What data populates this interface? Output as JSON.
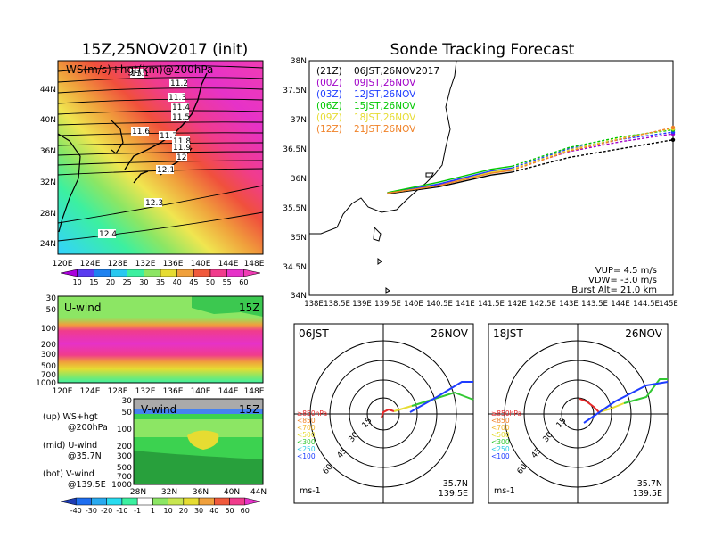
{
  "left_title": "15Z,25NOV2017 (init)",
  "right_title": "Sonde Tracking Forecast",
  "ws_panel": {
    "label": "WS(m/s)+hgt(km)@200hPa",
    "lat_ticks": [
      "44N",
      "40N",
      "36N",
      "32N",
      "28N",
      "24N"
    ],
    "lon_ticks": [
      "120E",
      "124E",
      "128E",
      "132E",
      "136E",
      "140E",
      "144E",
      "148E"
    ],
    "contour_labels": [
      "11.1",
      "11.2",
      "11.3",
      "11.4",
      "11.5",
      "11.6",
      "11.7",
      "11.8",
      "11.9",
      "12",
      "12.1",
      "12.3",
      "12.4"
    ],
    "colorbar": [
      "10",
      "15",
      "20",
      "25",
      "30",
      "35",
      "40",
      "45",
      "50",
      "55",
      "60"
    ]
  },
  "u_panel": {
    "label": "U-wind",
    "time": "15Z",
    "y_ticks": [
      "30",
      "50",
      "100",
      "200",
      "300",
      "500",
      "700",
      "1000"
    ],
    "x_ticks": [
      "120E",
      "124E",
      "128E",
      "132E",
      "136E",
      "140E",
      "144E",
      "148E"
    ]
  },
  "v_panel": {
    "label": "V-wind",
    "time": "15Z",
    "y_ticks": [
      "30",
      "50",
      "100",
      "200",
      "300",
      "500",
      "700",
      "1000"
    ],
    "x_ticks": [
      "28N",
      "32N",
      "36N",
      "40N",
      "44N"
    ],
    "colorbar": [
      "-40",
      "-30",
      "-20",
      "-10",
      "-1",
      "1",
      "10",
      "20",
      "30",
      "40",
      "50",
      "60"
    ]
  },
  "notes": {
    "up": "(up) WS+hgt",
    "up2": "@200hPa",
    "mid": "(mid) U-wind",
    "mid2": "@35.7N",
    "bot": "(bot) V-wind",
    "bot2": "@139.5E"
  },
  "track_map": {
    "legend": [
      {
        "z": "(21Z)",
        "label": "06JST,26NOV2017",
        "color": "#000000"
      },
      {
        "z": "(00Z)",
        "label": "09JST,26NOV",
        "color": "#a000c8"
      },
      {
        "z": "(03Z)",
        "label": "12JST,26NOV",
        "color": "#1e3cff"
      },
      {
        "z": "(06Z)",
        "label": "15JST,26NOV",
        "color": "#00c800"
      },
      {
        "z": "(09Z)",
        "label": "18JST,26NOV",
        "color": "#e6dc32"
      },
      {
        "z": "(12Z)",
        "label": "21JST,26NOV",
        "color": "#f08228"
      }
    ],
    "lat_ticks": [
      "38N",
      "37.5N",
      "37N",
      "36.5N",
      "36N",
      "35.5N",
      "35N",
      "34.5N",
      "34N"
    ],
    "lon_ticks": [
      "138E",
      "138.5E",
      "139E",
      "139.5E",
      "140E",
      "140.5E",
      "141E",
      "141.5E",
      "142E",
      "142.5E",
      "143E",
      "143.5E",
      "144E",
      "144.5E",
      "145E"
    ],
    "vup": "VUP=  4.5 m/s",
    "vdw": "VDW= -3.0 m/s",
    "burst": "Burst Alt= 21.0 km"
  },
  "hodographs": [
    {
      "time": "06JST",
      "date": "26NOV",
      "lat": "35.7N",
      "lon": "139.5E",
      "unit": "ms-1",
      "ring_labels": [
        "15",
        "30",
        "45",
        "60"
      ]
    },
    {
      "time": "18JST",
      "date": "26NOV",
      "lat": "35.7N",
      "lon": "139.5E",
      "unit": "ms-1",
      "ring_labels": [
        "15",
        "30",
        "45",
        "60"
      ]
    }
  ],
  "hodo_legend": [
    {
      "label": "≥850hPa",
      "color": "#e62828"
    },
    {
      "label": "<850",
      "color": "#f08228"
    },
    {
      "label": "<700",
      "color": "#f0b428"
    },
    {
      "label": "<500",
      "color": "#e6dc32"
    },
    {
      "label": "<300",
      "color": "#32c832"
    },
    {
      "label": "<250",
      "color": "#28c8e6"
    },
    {
      "label": "<100",
      "color": "#1e3cff"
    }
  ],
  "chart_data": [
    {
      "type": "line",
      "title": "Sonde Tracking Forecast",
      "series": [
        {
          "name": "06JST,26NOV2017",
          "x": [
            139.5,
            140.5,
            141.5,
            141.9,
            143.0,
            144.0,
            145.0
          ],
          "y": [
            35.73,
            35.85,
            36.05,
            36.1,
            36.35,
            36.5,
            36.65
          ]
        },
        {
          "name": "09JST,26NOV",
          "x": [
            139.5,
            140.5,
            141.5,
            141.9,
            143.0,
            144.0,
            145.0
          ],
          "y": [
            35.74,
            35.88,
            36.1,
            36.15,
            36.45,
            36.62,
            36.75
          ]
        },
        {
          "name": "12JST,26NOV",
          "x": [
            139.5,
            140.5,
            141.5,
            141.9,
            143.0,
            144.0,
            145.0
          ],
          "y": [
            35.74,
            35.9,
            36.12,
            36.17,
            36.5,
            36.66,
            36.78
          ]
        },
        {
          "name": "15JST,26NOV",
          "x": [
            139.5,
            140.5,
            141.5,
            141.9,
            143.0,
            144.0,
            145.0
          ],
          "y": [
            35.75,
            35.93,
            36.15,
            36.2,
            36.52,
            36.7,
            36.82
          ]
        },
        {
          "name": "18JST,26NOV",
          "x": [
            139.5,
            140.5,
            141.5,
            141.9,
            143.0,
            144.0,
            145.0
          ],
          "y": [
            35.74,
            35.87,
            36.1,
            36.15,
            36.48,
            36.68,
            36.84
          ]
        },
        {
          "name": "21JST,26NOV",
          "x": [
            139.5,
            140.5,
            141.5,
            141.9,
            143.0,
            144.0,
            145.0
          ],
          "y": [
            35.74,
            35.87,
            36.08,
            36.13,
            36.46,
            36.66,
            36.86
          ]
        }
      ],
      "xlim": [
        138,
        145
      ],
      "ylim": [
        34,
        38
      ]
    }
  ]
}
